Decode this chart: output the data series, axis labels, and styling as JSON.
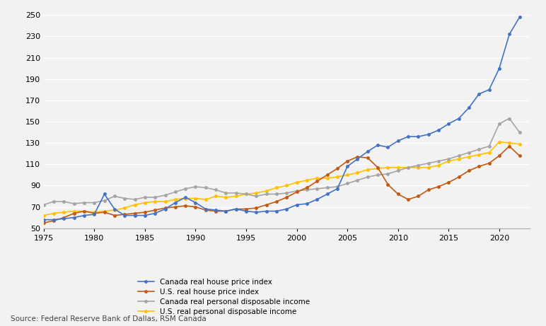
{
  "title": "",
  "source_text": "Source: Federal Reserve Bank of Dallas, RSM Canada",
  "xlim": [
    1975,
    2023
  ],
  "ylim": [
    50,
    255
  ],
  "yticks": [
    50,
    70,
    90,
    110,
    130,
    150,
    170,
    190,
    210,
    230,
    250
  ],
  "xticks": [
    1975,
    1980,
    1985,
    1990,
    1995,
    2000,
    2005,
    2010,
    2015,
    2020
  ],
  "legend_entries": [
    "Canada real house price index",
    "U.S. real house price index",
    "Canada real personal disposable income",
    "U.S. real personal disposable income"
  ],
  "colors": {
    "canada_house": "#4472C4",
    "us_house": "#C45911",
    "canada_income": "#A5A5A5",
    "us_income": "#FFC000"
  },
  "background_color": "#F2F2F2",
  "canada_house_price": {
    "years": [
      1975,
      1976,
      1977,
      1978,
      1979,
      1980,
      1981,
      1982,
      1983,
      1984,
      1985,
      1986,
      1987,
      1988,
      1989,
      1990,
      1991,
      1992,
      1993,
      1994,
      1995,
      1996,
      1997,
      1998,
      1999,
      2000,
      2001,
      2002,
      2003,
      2004,
      2005,
      2006,
      2007,
      2008,
      2009,
      2010,
      2011,
      2012,
      2013,
      2014,
      2015,
      2016,
      2017,
      2018,
      2019,
      2020,
      2021,
      2022
    ],
    "values": [
      58,
      58,
      59,
      60,
      62,
      63,
      82,
      68,
      62,
      62,
      62,
      64,
      68,
      74,
      79,
      74,
      68,
      67,
      66,
      68,
      66,
      65,
      66,
      66,
      68,
      72,
      73,
      77,
      82,
      87,
      108,
      115,
      122,
      128,
      126,
      132,
      136,
      136,
      138,
      142,
      148,
      153,
      163,
      176,
      180,
      200,
      232,
      248
    ]
  },
  "us_house_price": {
    "years": [
      1975,
      1976,
      1977,
      1978,
      1979,
      1980,
      1981,
      1982,
      1983,
      1984,
      1985,
      1986,
      1987,
      1988,
      1989,
      1990,
      1991,
      1992,
      1993,
      1994,
      1995,
      1996,
      1997,
      1998,
      1999,
      2000,
      2001,
      2002,
      2003,
      2004,
      2005,
      2006,
      2007,
      2008,
      2009,
      2010,
      2011,
      2012,
      2013,
      2014,
      2015,
      2016,
      2017,
      2018,
      2019,
      2020,
      2021,
      2022
    ],
    "values": [
      55,
      57,
      60,
      64,
      66,
      64,
      65,
      62,
      63,
      64,
      65,
      67,
      69,
      70,
      71,
      70,
      67,
      66,
      66,
      68,
      68,
      69,
      72,
      75,
      79,
      84,
      88,
      94,
      100,
      106,
      113,
      117,
      116,
      107,
      91,
      82,
      77,
      80,
      86,
      89,
      93,
      98,
      104,
      108,
      111,
      118,
      127,
      118
    ]
  },
  "canada_income": {
    "years": [
      1975,
      1976,
      1977,
      1978,
      1979,
      1980,
      1981,
      1982,
      1983,
      1984,
      1985,
      1986,
      1987,
      1988,
      1989,
      1990,
      1991,
      1992,
      1993,
      1994,
      1995,
      1996,
      1997,
      1998,
      1999,
      2000,
      2001,
      2002,
      2003,
      2004,
      2005,
      2006,
      2007,
      2008,
      2009,
      2010,
      2011,
      2012,
      2013,
      2014,
      2015,
      2016,
      2017,
      2018,
      2019,
      2020,
      2021,
      2022
    ],
    "values": [
      72,
      75,
      75,
      73,
      74,
      74,
      76,
      80,
      78,
      77,
      79,
      79,
      81,
      84,
      87,
      89,
      88,
      86,
      83,
      83,
      82,
      80,
      82,
      82,
      83,
      85,
      86,
      87,
      88,
      89,
      92,
      95,
      98,
      100,
      101,
      104,
      107,
      109,
      111,
      113,
      115,
      118,
      121,
      124,
      127,
      148,
      153,
      140
    ]
  },
  "us_income": {
    "years": [
      1975,
      1976,
      1977,
      1978,
      1979,
      1980,
      1981,
      1982,
      1983,
      1984,
      1985,
      1986,
      1987,
      1988,
      1989,
      1990,
      1991,
      1992,
      1993,
      1994,
      1995,
      1996,
      1997,
      1998,
      1999,
      2000,
      2001,
      2002,
      2003,
      2004,
      2005,
      2006,
      2007,
      2008,
      2009,
      2010,
      2011,
      2012,
      2013,
      2014,
      2015,
      2016,
      2017,
      2018,
      2019,
      2020,
      2021,
      2022
    ],
    "values": [
      62,
      64,
      65,
      66,
      66,
      65,
      66,
      67,
      69,
      72,
      74,
      75,
      75,
      77,
      78,
      78,
      77,
      80,
      79,
      80,
      82,
      83,
      85,
      88,
      90,
      93,
      95,
      97,
      97,
      98,
      100,
      102,
      105,
      106,
      107,
      107,
      107,
      107,
      107,
      109,
      113,
      115,
      117,
      119,
      121,
      131,
      130,
      129
    ]
  }
}
